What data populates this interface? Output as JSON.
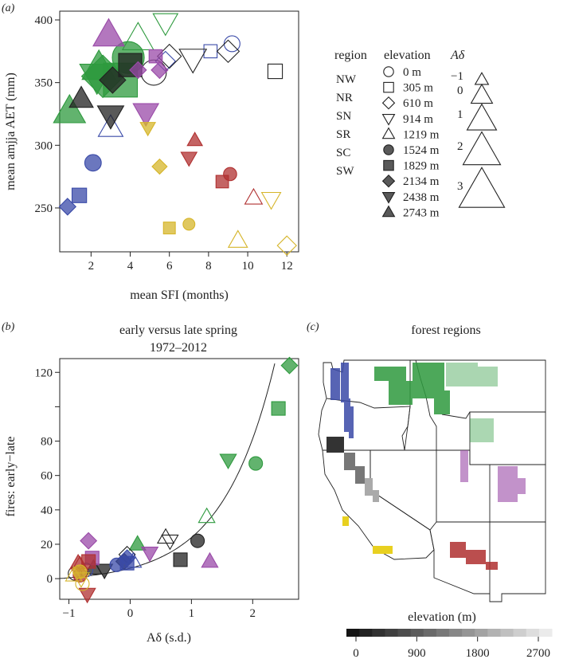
{
  "colors": {
    "NW": "#3a4aa8",
    "NR": "#2e9a3e",
    "SN": "#222222",
    "SR": "#9a4aa8",
    "SC": "#d6b52a",
    "SW": "#b03030"
  },
  "chart_data": [
    {
      "panel": "(a)",
      "type": "scatter",
      "xlabel": "mean SFI (months)",
      "ylabel": "mean amjja AET (mm)",
      "xlim": [
        0.4,
        12.6
      ],
      "ylim": [
        215,
        407
      ],
      "xticks": [
        "2",
        "4",
        "6",
        "8",
        "10",
        "12"
      ],
      "yticks": [
        "250",
        "300",
        "350",
        "400"
      ],
      "legend": {
        "region_title": "region",
        "regions": [
          "NW",
          "NR",
          "SN",
          "SR",
          "SC",
          "SW"
        ],
        "elevation_title": "elevation",
        "elevations": [
          "0 m",
          "305 m",
          "610 m",
          "914 m",
          "1219 m",
          "1524 m",
          "1829 m",
          "2134 m",
          "2438 m",
          "2743 m"
        ],
        "adelta_title": "Aδ",
        "adelta_levels": [
          "−1",
          "0",
          "1",
          "2",
          "3"
        ]
      },
      "points": [
        {
          "region": "NW",
          "elev": "0 m",
          "x": 9.2,
          "y": 381,
          "ad": -0.3
        },
        {
          "region": "NW",
          "elev": "1524 m",
          "x": 2.1,
          "y": 286,
          "ad": -0.2
        },
        {
          "region": "NW",
          "elev": "1829 m",
          "x": 1.4,
          "y": 260,
          "ad": -0.5
        },
        {
          "region": "NW",
          "elev": "2134 m",
          "x": 0.8,
          "y": 251,
          "ad": -0.6
        },
        {
          "region": "NW",
          "elev": "1219 m",
          "x": 3.0,
          "y": 314,
          "ad": 0.4
        },
        {
          "region": "NW",
          "elev": "610 m",
          "x": 5.8,
          "y": 367,
          "ad": -0.2
        },
        {
          "region": "NW",
          "elev": "305 m",
          "x": 8.1,
          "y": 375,
          "ad": -0.7
        },
        {
          "region": "NR",
          "elev": "1524 m",
          "x": 3.9,
          "y": 370,
          "ad": 2.1
        },
        {
          "region": "NR",
          "elev": "1829 m",
          "x": 3.5,
          "y": 352,
          "ad": 2.4
        },
        {
          "region": "NR",
          "elev": "2134 m",
          "x": 2.6,
          "y": 355,
          "ad": 2.6
        },
        {
          "region": "NR",
          "elev": "2438 m",
          "x": 2.3,
          "y": 355,
          "ad": 1.6
        },
        {
          "region": "NR",
          "elev": "2743 m",
          "x": 0.9,
          "y": 327,
          "ad": 1.3
        },
        {
          "region": "NR",
          "elev": "1219 m",
          "x": 4.4,
          "y": 385,
          "ad": 1.2
        },
        {
          "region": "NR",
          "elev": "914 m",
          "x": 5.8,
          "y": 398,
          "ad": 0.4
        },
        {
          "region": "NR",
          "elev": "2743 m",
          "x": 2.4,
          "y": 362,
          "ad": 1.5
        },
        {
          "region": "SN",
          "elev": "0 m",
          "x": 5.2,
          "y": 358,
          "ad": 1.1
        },
        {
          "region": "SN",
          "elev": "1829 m",
          "x": 4.0,
          "y": 364,
          "ad": 0.8
        },
        {
          "region": "SN",
          "elev": "2134 m",
          "x": 3.1,
          "y": 352,
          "ad": 0.6
        },
        {
          "region": "SN",
          "elev": "2438 m",
          "x": 3.0,
          "y": 324,
          "ad": 0.6
        },
        {
          "region": "SN",
          "elev": "2743 m",
          "x": 1.5,
          "y": 337,
          "ad": 0.3
        },
        {
          "region": "SN",
          "elev": "914 m",
          "x": 7.2,
          "y": 369,
          "ad": 0.7
        },
        {
          "region": "SN",
          "elev": "610 m",
          "x": 9.0,
          "y": 375,
          "ad": 0.1
        },
        {
          "region": "SN",
          "elev": "305 m",
          "x": 11.4,
          "y": 359,
          "ad": -0.5
        },
        {
          "region": "SN",
          "elev": "610 m",
          "x": 6.0,
          "y": 371,
          "ad": 0.3
        },
        {
          "region": "SR",
          "elev": "2743 m",
          "x": 2.9,
          "y": 388,
          "ad": 1.2
        },
        {
          "region": "SR",
          "elev": "2438 m",
          "x": 4.8,
          "y": 326,
          "ad": 0.5
        },
        {
          "region": "SR",
          "elev": "1829 m",
          "x": 5.3,
          "y": 371,
          "ad": -0.7
        },
        {
          "region": "SR",
          "elev": "2134 m",
          "x": 5.5,
          "y": 360,
          "ad": -0.6
        },
        {
          "region": "SR",
          "elev": "2134 m",
          "x": 4.4,
          "y": 360,
          "ad": -0.6
        },
        {
          "region": "SC",
          "elev": "2438 m",
          "x": 4.9,
          "y": 314,
          "ad": -0.8
        },
        {
          "region": "SC",
          "elev": "2134 m",
          "x": 5.5,
          "y": 283,
          "ad": -0.8
        },
        {
          "region": "SC",
          "elev": "1829 m",
          "x": 6.0,
          "y": 234,
          "ad": -0.9
        },
        {
          "region": "SC",
          "elev": "1524 m",
          "x": 7.0,
          "y": 237,
          "ad": -0.9
        },
        {
          "region": "SC",
          "elev": "1219 m",
          "x": 9.5,
          "y": 224,
          "ad": -0.3
        },
        {
          "region": "SC",
          "elev": "914 m",
          "x": 11.2,
          "y": 257,
          "ad": -0.3
        },
        {
          "region": "SC",
          "elev": "610 m",
          "x": 12.0,
          "y": 220,
          "ad": -0.3
        },
        {
          "region": "SW",
          "elev": "2743 m",
          "x": 7.3,
          "y": 304,
          "ad": -0.8
        },
        {
          "region": "SW",
          "elev": "2438 m",
          "x": 7.0,
          "y": 290,
          "ad": -0.7
        },
        {
          "region": "SW",
          "elev": "1524 m",
          "x": 9.1,
          "y": 277,
          "ad": -0.7
        },
        {
          "region": "SW",
          "elev": "1829 m",
          "x": 8.7,
          "y": 271,
          "ad": -0.8
        },
        {
          "region": "SW",
          "elev": "1219 m",
          "x": 10.3,
          "y": 258,
          "ad": -0.5
        }
      ]
    },
    {
      "panel": "(b)",
      "type": "scatter",
      "title": "early versus late spring",
      "subtitle": "1972–2012",
      "xlabel": "Aδ (s.d.)",
      "ylabel": "fires: early−late",
      "xlim": [
        -1.15,
        2.75
      ],
      "ylim": [
        -12,
        128
      ],
      "xticks": [
        "−1",
        "0",
        "1",
        "2"
      ],
      "yticks": [
        "0",
        "20",
        "40",
        "60",
        "80",
        "120"
      ],
      "curve": "exponential fit",
      "points": [
        {
          "region": "NR",
          "elev": "2134 m",
          "x": 2.6,
          "y": 124
        },
        {
          "region": "NR",
          "elev": "1829 m",
          "x": 2.42,
          "y": 99
        },
        {
          "region": "NR",
          "elev": "2438 m",
          "x": 1.6,
          "y": 69
        },
        {
          "region": "NR",
          "elev": "1524 m",
          "x": 2.05,
          "y": 67
        },
        {
          "region": "NR",
          "elev": "1219 m",
          "x": 1.25,
          "y": 36
        },
        {
          "region": "NR",
          "elev": "2743 m",
          "x": 0.12,
          "y": 20
        },
        {
          "region": "SN",
          "elev": "1524 m",
          "x": 1.1,
          "y": 22
        },
        {
          "region": "SN",
          "elev": "1829 m",
          "x": 0.82,
          "y": 11
        },
        {
          "region": "SN",
          "elev": "914 m",
          "x": 0.65,
          "y": 22
        },
        {
          "region": "SN",
          "elev": "1219 m",
          "x": 0.58,
          "y": 24
        },
        {
          "region": "SN",
          "elev": "610 m",
          "x": -0.05,
          "y": 14
        },
        {
          "region": "SN",
          "elev": "2134 m",
          "x": -0.1,
          "y": 10
        },
        {
          "region": "SN",
          "elev": "2438 m",
          "x": -0.42,
          "y": 5
        },
        {
          "region": "SN",
          "elev": "2743 m",
          "x": -0.6,
          "y": 6
        },
        {
          "region": "SN",
          "elev": "0 m",
          "x": -0.9,
          "y": 3
        },
        {
          "region": "SR",
          "elev": "2743 m",
          "x": 1.3,
          "y": 10
        },
        {
          "region": "SR",
          "elev": "2438 m",
          "x": 0.32,
          "y": 15
        },
        {
          "region": "SR",
          "elev": "2134 m",
          "x": -0.68,
          "y": 22
        },
        {
          "region": "SR",
          "elev": "1829 m",
          "x": -0.62,
          "y": 12
        },
        {
          "region": "NW",
          "elev": "1524 m",
          "x": -0.22,
          "y": 8
        },
        {
          "region": "NW",
          "elev": "1829 m",
          "x": -0.05,
          "y": 9
        },
        {
          "region": "NW",
          "elev": "2134 m",
          "x": -0.05,
          "y": 12
        },
        {
          "region": "NW",
          "elev": "0 m",
          "x": -0.72,
          "y": 5
        },
        {
          "region": "NW",
          "elev": "1219 m",
          "x": 0.05,
          "y": 10
        },
        {
          "region": "SW",
          "elev": "1829 m",
          "x": -0.68,
          "y": 10
        },
        {
          "region": "SW",
          "elev": "1524 m",
          "x": -0.82,
          "y": 2
        },
        {
          "region": "SW",
          "elev": "2438 m",
          "x": -0.7,
          "y": -9
        },
        {
          "region": "SW",
          "elev": "1219 m",
          "x": -0.82,
          "y": 8
        },
        {
          "region": "SW",
          "elev": "2743 m",
          "x": -0.85,
          "y": 9
        },
        {
          "region": "SC",
          "elev": "1524 m",
          "x": -0.82,
          "y": 4
        },
        {
          "region": "SC",
          "elev": "0 m",
          "x": -0.78,
          "y": -3
        },
        {
          "region": "SC",
          "elev": "1219 m",
          "x": -0.92,
          "y": 2
        },
        {
          "region": "SC",
          "elev": "914 m",
          "x": -0.8,
          "y": 0
        }
      ]
    },
    {
      "panel": "(c)",
      "type": "map",
      "title": "forest regions",
      "colorbar": {
        "label": "elevation (m)",
        "ticks": [
          "0",
          "900",
          "1800",
          "2700"
        ],
        "range": [
          0,
          2700
        ]
      }
    }
  ]
}
